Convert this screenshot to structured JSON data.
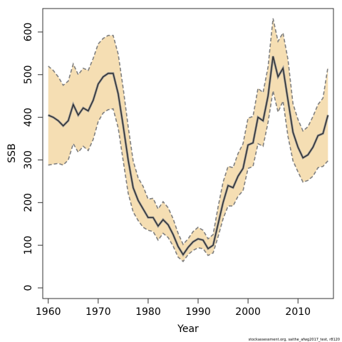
{
  "chart_data": {
    "type": "line",
    "xlabel": "Year",
    "ylabel": "SSB",
    "xlim": [
      1958.9,
      2017.1
    ],
    "ylim": [
      -25,
      655
    ],
    "x_ticks": [
      1960,
      1970,
      1980,
      1990,
      2000,
      2010
    ],
    "y_ticks": [
      0,
      100,
      200,
      300,
      400,
      500,
      600
    ],
    "band_color": "#f5deb3",
    "band_edge_color": "#808080",
    "line_color": "#2f2f2f",
    "series": [
      {
        "x": [
          1960,
          1961,
          1962,
          1963,
          1964,
          1965,
          1966,
          1967,
          1968,
          1969,
          1970,
          1971,
          1972,
          1973,
          1974,
          1975,
          1976,
          1977,
          1978,
          1979,
          1980,
          1981,
          1982,
          1983,
          1984,
          1985,
          1986,
          1987,
          1988,
          1989,
          1990,
          1991,
          1992,
          1993,
          1994,
          1995,
          1996,
          1997,
          1998,
          1999,
          2000,
          2001,
          2002,
          2003,
          2004,
          2005,
          2006,
          2007,
          2008,
          2009,
          2010,
          2011,
          2012,
          2013,
          2014,
          2015,
          2016
        ],
        "estimate": [
          405,
          400,
          392,
          380,
          392,
          430,
          405,
          422,
          415,
          440,
          478,
          495,
          503,
          503,
          455,
          380,
          300,
          235,
          205,
          185,
          165,
          165,
          145,
          160,
          148,
          125,
          97,
          78,
          95,
          108,
          115,
          112,
          92,
          100,
          150,
          200,
          240,
          235,
          262,
          280,
          335,
          340,
          400,
          392,
          450,
          543,
          495,
          515,
          440,
          365,
          330,
          305,
          312,
          330,
          357,
          362,
          405
        ],
        "upper": [
          520,
          510,
          495,
          475,
          485,
          525,
          500,
          515,
          510,
          538,
          572,
          585,
          592,
          592,
          548,
          468,
          378,
          298,
          258,
          238,
          208,
          210,
          185,
          202,
          188,
          162,
          128,
          102,
          115,
          132,
          142,
          135,
          115,
          125,
          190,
          248,
          285,
          282,
          315,
          338,
          398,
          402,
          468,
          458,
          518,
          632,
          578,
          598,
          535,
          432,
          395,
          368,
          378,
          402,
          430,
          445,
          518
        ],
        "lower": [
          288,
          290,
          292,
          288,
          300,
          338,
          318,
          332,
          322,
          348,
          390,
          410,
          418,
          420,
          375,
          298,
          222,
          178,
          158,
          142,
          135,
          132,
          112,
          128,
          118,
          98,
          72,
          62,
          78,
          88,
          94,
          92,
          76,
          82,
          120,
          162,
          192,
          192,
          215,
          228,
          280,
          285,
          338,
          332,
          388,
          462,
          412,
          438,
          355,
          298,
          272,
          248,
          252,
          262,
          282,
          285,
          298
        ]
      }
    ]
  },
  "footer_note": "stockassessment.org, saithe_afwg2017_test, r8120"
}
